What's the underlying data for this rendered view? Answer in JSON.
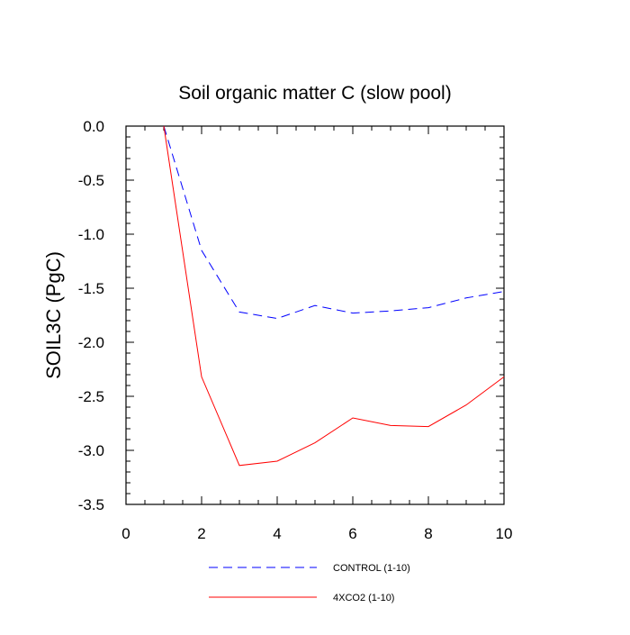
{
  "chart_data": {
    "type": "line",
    "title": "Soil organic matter C (slow pool)",
    "xlabel": "",
    "ylabel": "SOIL3C  (PgC)",
    "xlim": [
      0,
      10
    ],
    "ylim": [
      -3.5,
      0.0
    ],
    "x_ticks": [
      0,
      2,
      4,
      6,
      8,
      10
    ],
    "x_tick_labels": [
      "0",
      "2",
      "4",
      "6",
      "8",
      "10"
    ],
    "y_ticks": [
      0.0,
      -0.5,
      -1.0,
      -1.5,
      -2.0,
      -2.5,
      -3.0,
      -3.5
    ],
    "y_tick_labels": [
      "0.0",
      "-0.5",
      "-1.0",
      "-1.5",
      "-2.0",
      "-2.5",
      "-3.0",
      "-3.5"
    ],
    "grid": false,
    "legend_position": "bottom",
    "x": [
      1,
      2,
      3,
      4,
      5,
      6,
      7,
      8,
      9,
      10
    ],
    "series": [
      {
        "name": "CONTROL (1-10)",
        "color": "#0000ff",
        "style": "dashed",
        "values": [
          0.0,
          -1.15,
          -1.72,
          -1.78,
          -1.66,
          -1.73,
          -1.71,
          -1.68,
          -1.59,
          -1.53
        ]
      },
      {
        "name": "4XCO2 (1-10)",
        "color": "#ff0000",
        "style": "solid",
        "values": [
          0.0,
          -2.32,
          -3.14,
          -3.1,
          -2.93,
          -2.7,
          -2.77,
          -2.78,
          -2.58,
          -2.32
        ]
      }
    ]
  }
}
